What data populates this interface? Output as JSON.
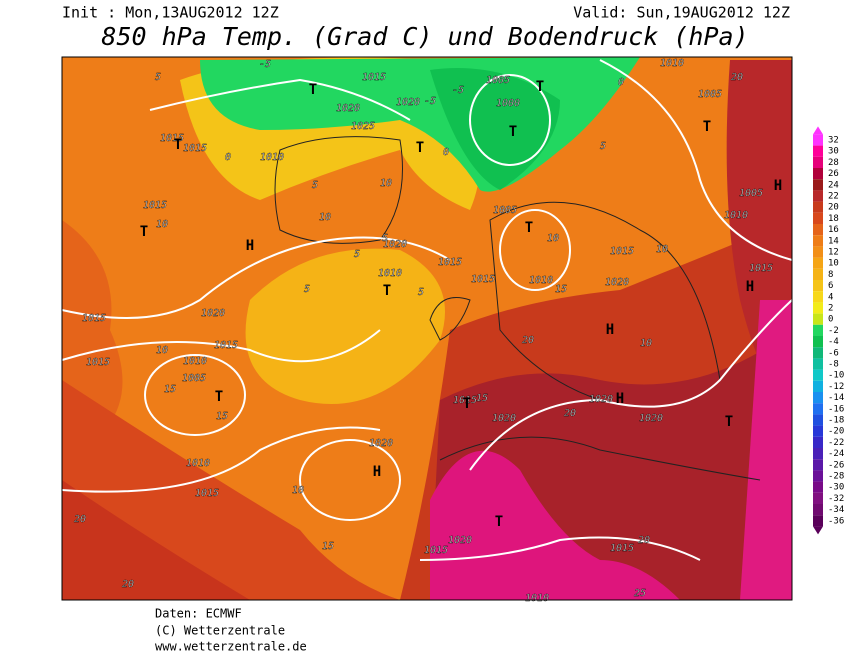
{
  "header": {
    "init": "Init : Mon,13AUG2012 12Z",
    "valid": "Valid: Sun,19AUG2012 12Z",
    "title": "850 hPa Temp. (Grad C) und Bodendruck (hPa)"
  },
  "colorbar": {
    "labels": [
      32,
      30,
      28,
      26,
      24,
      22,
      20,
      18,
      16,
      14,
      12,
      10,
      8,
      6,
      4,
      2,
      0,
      -2,
      -4,
      -6,
      -8,
      -10,
      -12,
      -14,
      -16,
      -18,
      -20,
      -22,
      -24,
      -26,
      -28,
      -30,
      -32,
      -34,
      -36
    ]
  },
  "map": {
    "labels": [
      "1015",
      "1015",
      "1010",
      "1025",
      "1020",
      "1015",
      "1020",
      "1005",
      "1000",
      "1005",
      "1020",
      "1010",
      "1015",
      "1015",
      "1010",
      "1020",
      "1015",
      "1005",
      "1005",
      "1010",
      "1015",
      "1010",
      "1015",
      "1020",
      "1015",
      "1015",
      "1015",
      "1010",
      "1005",
      "1010",
      "1015",
      "1020",
      "1015",
      "1020",
      "1020",
      "1020",
      "1020",
      "1015",
      "1015",
      "1010",
      "5",
      "0",
      "5",
      "10",
      "10",
      "5",
      "5",
      "5",
      "5",
      "10",
      "10",
      "15",
      "15",
      "10",
      "15",
      "20",
      "20",
      "20",
      "20",
      "20",
      "25",
      "20",
      "10",
      "10",
      "15",
      "10",
      "0",
      "5",
      "-5",
      "-5",
      "-5",
      "0",
      "15",
      "T",
      "T",
      "H",
      "T",
      "T",
      "T",
      "T",
      "T",
      "T",
      "T",
      "H",
      "H",
      "H",
      "T",
      "T",
      "H",
      "H",
      "T",
      "T"
    ]
  },
  "footer": {
    "source": "Daten: ECMWF",
    "copyright": "(C) Wetterzentrale",
    "url": "www.wetterzentrale.de"
  }
}
